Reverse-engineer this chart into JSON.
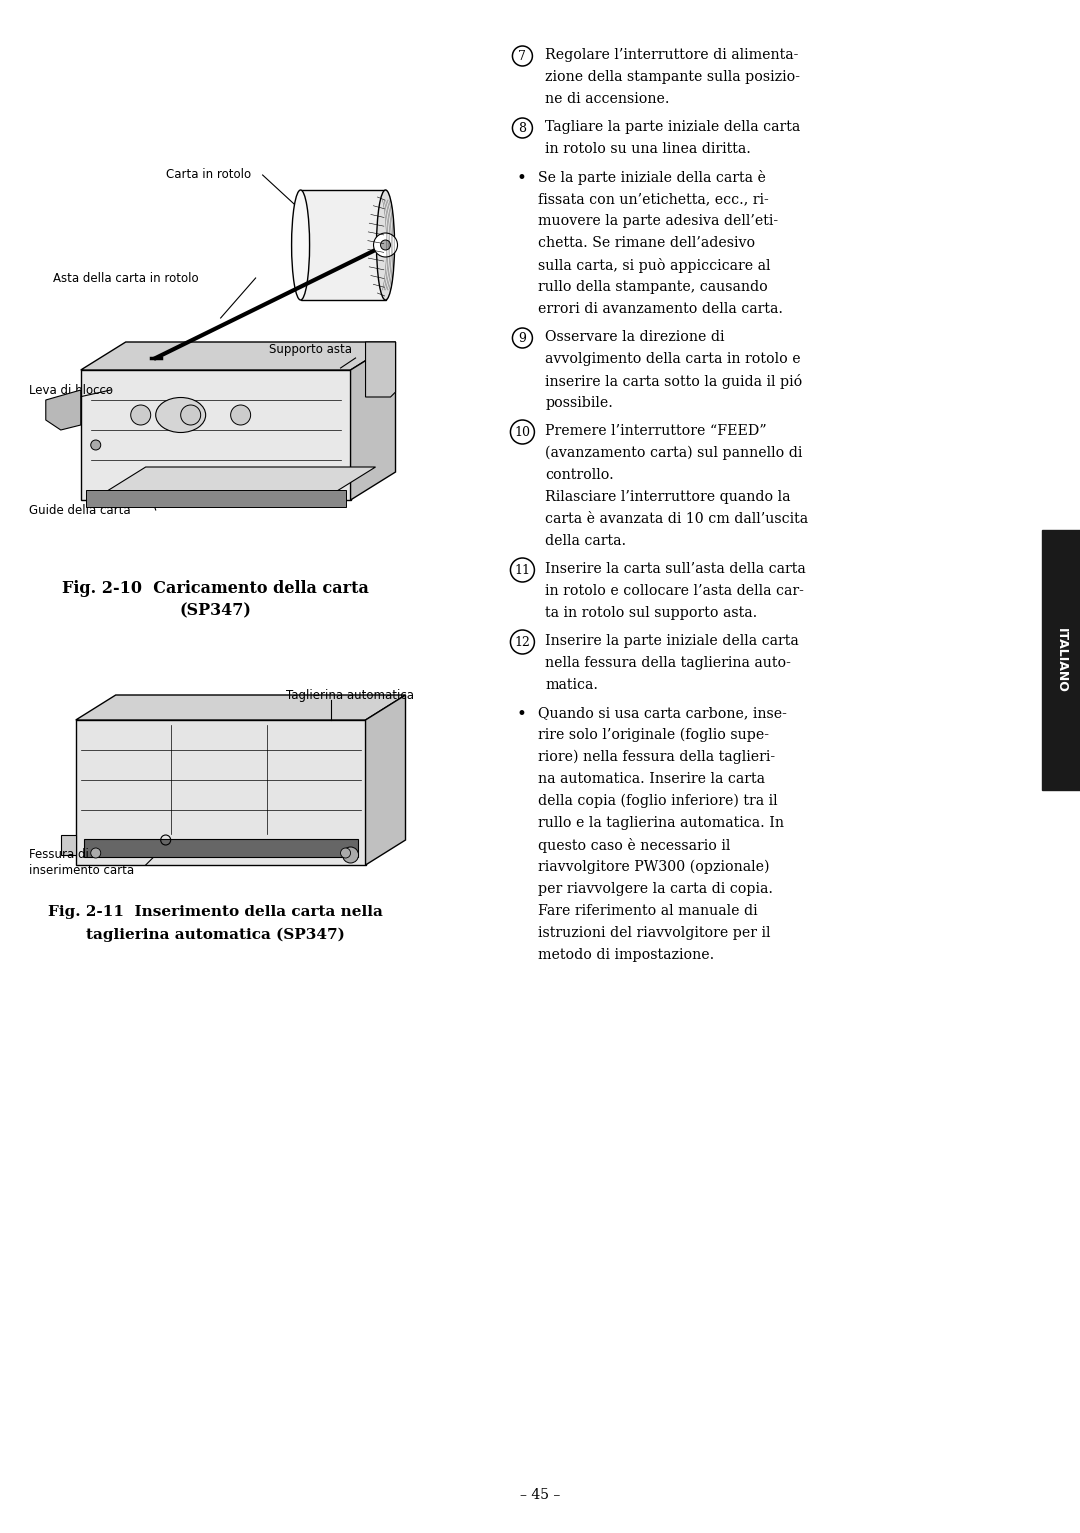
{
  "background_color": "#ffffff",
  "page_width": 10.8,
  "page_height": 15.33,
  "sidebar_color": "#1a1a1a",
  "sidebar_text": "ITALIANO",
  "sidebar_text_color": "#ffffff",
  "fig1_caption_line1": "Fig. 2-10  Caricamento della carta",
  "fig1_caption_line2": "(SP347)",
  "fig2_caption_line1": "Fig. 2-11  Inserimento della carta nella",
  "fig2_caption_line2": "taglierina automatica (SP347)",
  "page_number": "– 45 –",
  "right_col_items": [
    {
      "type": "numbered",
      "num": "7",
      "text": "Regolare l’interruttore di alimenta-\nzione della stampante sulla posizio-\nne di accensione."
    },
    {
      "type": "numbered",
      "num": "8",
      "text": "Tagliare la parte iniziale della carta\nin rotolo su una linea diritta."
    },
    {
      "type": "bullet",
      "text": "Se la parte iniziale della carta è\nfissata con un’etichetta, ecc., ri-\nmuovere la parte adesiva dell’eti-\nchetta. Se rimane dell’adesivo\nsulla carta, si può appiccicare al\nrullo della stampante, causando\nerrori di avanzamento della carta."
    },
    {
      "type": "numbered",
      "num": "9",
      "text": "Osservare la direzione di\navvolgimento della carta in rotolo e\ninserire la carta sotto la guida il pió\npossibile."
    },
    {
      "type": "numbered",
      "num": "10",
      "text": "Premere l’interruttore “FEED”\n(avanzamento carta) sul pannello di\ncontrollo.\nRilasciare l’interruttore quando la\ncarta è avanzata di 10 cm dall’uscita\ndella carta."
    },
    {
      "type": "numbered",
      "num": "11",
      "text": "Inserire la carta sull’asta della carta\nin rotolo e collocare l’asta della car-\nta in rotolo sul supporto asta."
    },
    {
      "type": "numbered",
      "num": "12",
      "text": "Inserire la parte iniziale della carta\nnella fessura della taglierina auto-\nmatica."
    },
    {
      "type": "bullet",
      "text": "Quando si usa carta carbone, inse-\nrire solo l’originale (foglio supe-\nriore) nella fessura della taglieri-\nna automatica. Inserire la carta\ndella copia (foglio inferiore) tra il\nrullo e la taglierina automatica. In\nquesto caso è necessario il\nriavvolgitore PW300 (opzionale)\nper riavvolgere la carta di copia.\nFare riferimento al manuale di\nistruzioni del riavvolgitore per il\nmetodo di impostazione."
    }
  ]
}
